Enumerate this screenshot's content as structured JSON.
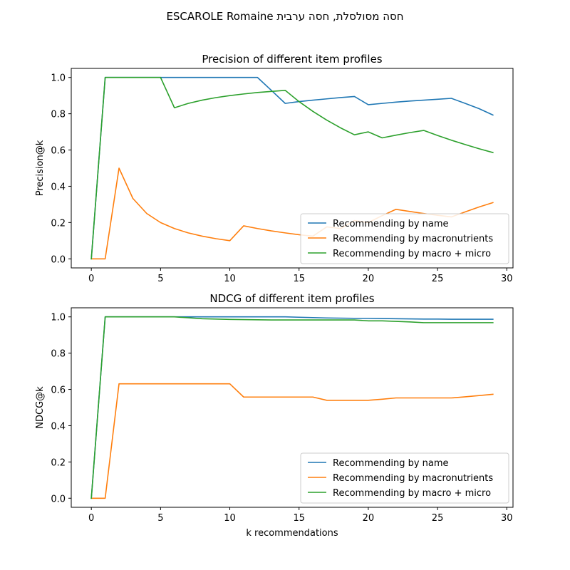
{
  "figure": {
    "suptitle": "ESCAROLE Romaine חסה מסולסלת, חסה ערבית"
  },
  "colors": {
    "name": "#1f77b4",
    "macronutrients": "#ff7f0e",
    "macro_micro": "#2ca02c"
  },
  "chart_data": [
    {
      "type": "line",
      "title": "Precision of different item profiles",
      "xlabel": "",
      "ylabel": "Precision@k",
      "xlim": [
        -1.45,
        30.45
      ],
      "ylim": [
        -0.05,
        1.05
      ],
      "xticks": [
        0,
        5,
        10,
        15,
        20,
        25,
        30
      ],
      "yticks": [
        0.0,
        0.2,
        0.4,
        0.6,
        0.8,
        1.0
      ],
      "xtick_labels": [
        "0",
        "5",
        "10",
        "15",
        "20",
        "25",
        "30"
      ],
      "ytick_labels": [
        "0.0",
        "0.2",
        "0.4",
        "0.6",
        "0.8",
        "1.0"
      ],
      "legend_position": "lower-right",
      "x": [
        0,
        1,
        2,
        3,
        4,
        5,
        6,
        7,
        8,
        9,
        10,
        11,
        12,
        13,
        14,
        15,
        16,
        17,
        18,
        19,
        20,
        21,
        22,
        23,
        24,
        25,
        26,
        27,
        28,
        29
      ],
      "series": [
        {
          "name": "Recommending by name",
          "color_key": "name",
          "values": [
            0,
            1,
            1,
            1,
            1,
            1,
            1,
            1,
            1,
            1,
            1,
            1,
            1,
            0.929,
            0.857,
            0.867,
            0.875,
            0.882,
            0.889,
            0.895,
            0.85,
            0.857,
            0.864,
            0.87,
            0.875,
            0.88,
            0.885,
            0.857,
            0.828,
            0.793
          ]
        },
        {
          "name": "Recommending by macronutrients",
          "color_key": "macronutrients",
          "values": [
            0,
            0,
            0.5,
            0.333,
            0.25,
            0.2,
            0.167,
            0.143,
            0.125,
            0.111,
            0.1,
            0.182,
            0.167,
            0.154,
            0.143,
            0.133,
            0.125,
            0.176,
            0.167,
            0.211,
            0.2,
            0.238,
            0.273,
            0.261,
            0.25,
            0.24,
            0.231,
            0.259,
            0.286,
            0.31
          ]
        },
        {
          "name": "Recommending by macro + micro",
          "color_key": "macro_micro",
          "values": [
            0,
            1,
            1,
            1,
            1,
            1,
            0.833,
            0.857,
            0.875,
            0.889,
            0.9,
            0.909,
            0.917,
            0.923,
            0.929,
            0.867,
            0.813,
            0.765,
            0.722,
            0.684,
            0.7,
            0.667,
            0.682,
            0.696,
            0.708,
            0.68,
            0.654,
            0.63,
            0.607,
            0.586
          ]
        }
      ]
    },
    {
      "type": "line",
      "title": "NDCG of different item profiles",
      "xlabel": "k recommendations",
      "ylabel": "NDCG@k",
      "xlim": [
        -1.45,
        30.45
      ],
      "ylim": [
        -0.05,
        1.05
      ],
      "xticks": [
        0,
        5,
        10,
        15,
        20,
        25,
        30
      ],
      "yticks": [
        0.0,
        0.2,
        0.4,
        0.6,
        0.8,
        1.0
      ],
      "xtick_labels": [
        "0",
        "5",
        "10",
        "15",
        "20",
        "25",
        "30"
      ],
      "ytick_labels": [
        "0.0",
        "0.2",
        "0.4",
        "0.6",
        "0.8",
        "1.0"
      ],
      "legend_position": "lower-right",
      "x": [
        0,
        1,
        2,
        3,
        4,
        5,
        6,
        7,
        8,
        9,
        10,
        11,
        12,
        13,
        14,
        15,
        16,
        17,
        18,
        19,
        20,
        21,
        22,
        23,
        24,
        25,
        26,
        27,
        28,
        29
      ],
      "series": [
        {
          "name": "Recommending by name",
          "color_key": "name",
          "values": [
            0,
            1,
            1,
            1,
            1,
            1,
            1,
            1,
            1,
            1,
            1,
            1,
            1,
            1,
            1,
            0.998,
            0.996,
            0.994,
            0.993,
            0.992,
            0.992,
            0.991,
            0.99,
            0.989,
            0.988,
            0.988,
            0.987,
            0.987,
            0.987,
            0.987
          ]
        },
        {
          "name": "Recommending by macronutrients",
          "color_key": "macronutrients",
          "values": [
            0,
            0,
            0.631,
            0.631,
            0.631,
            0.631,
            0.631,
            0.631,
            0.631,
            0.631,
            0.631,
            0.558,
            0.558,
            0.558,
            0.558,
            0.558,
            0.558,
            0.54,
            0.54,
            0.54,
            0.54,
            0.546,
            0.553,
            0.553,
            0.553,
            0.553,
            0.553,
            0.559,
            0.566,
            0.573
          ]
        },
        {
          "name": "Recommending by macro + micro",
          "color_key": "macro_micro",
          "values": [
            0,
            1,
            1,
            1,
            1,
            1,
            1,
            0.995,
            0.99,
            0.988,
            0.986,
            0.985,
            0.984,
            0.983,
            0.983,
            0.983,
            0.983,
            0.983,
            0.983,
            0.983,
            0.978,
            0.978,
            0.975,
            0.972,
            0.968,
            0.968,
            0.968,
            0.968,
            0.968,
            0.968
          ]
        }
      ]
    }
  ]
}
